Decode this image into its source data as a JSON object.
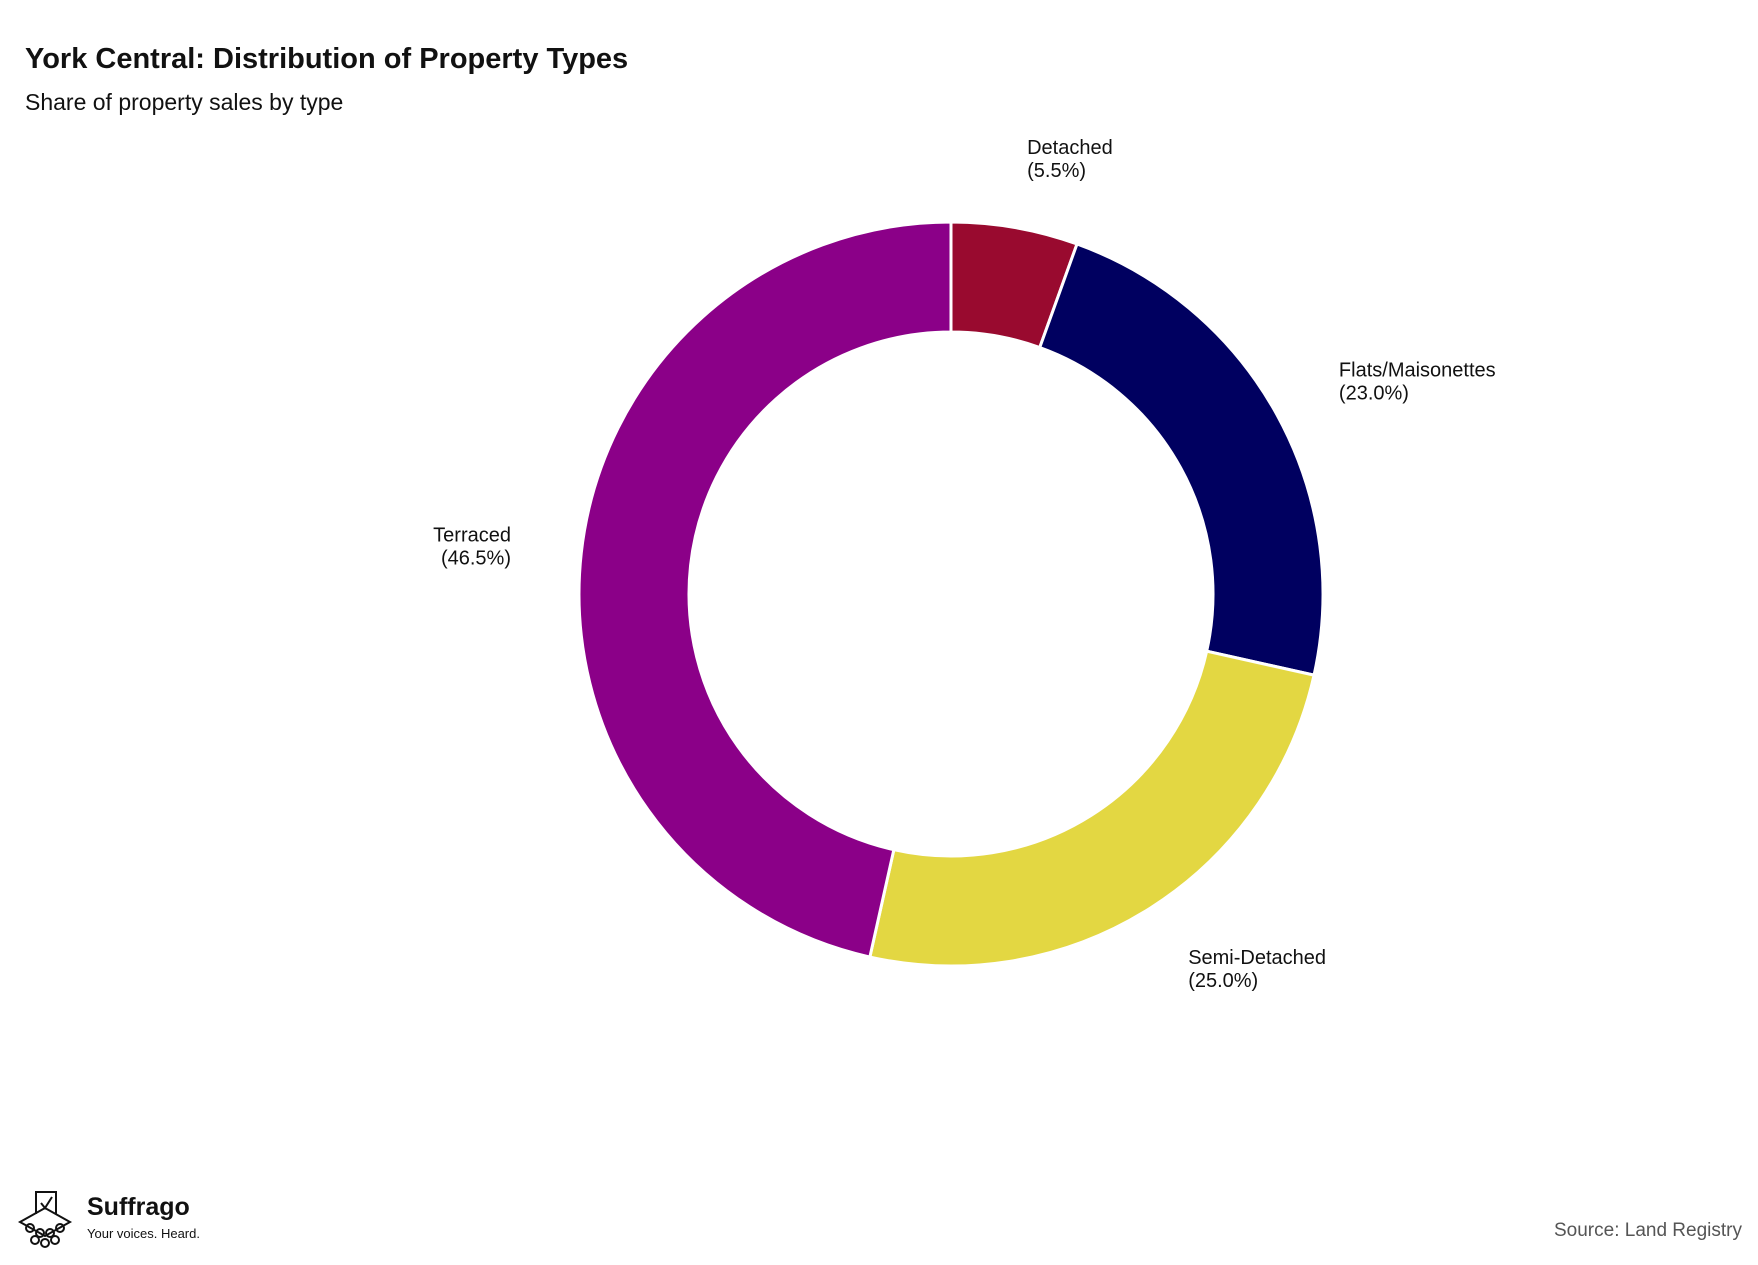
{
  "chart_data": {
    "type": "donut",
    "title": "York Central: Distribution of Property Types",
    "subtitle": "Share of property sales by type",
    "categories": [
      "Detached",
      "Flats/Maisonettes",
      "Semi-Detached",
      "Terraced"
    ],
    "values": [
      5.5,
      23.0,
      25.0,
      46.5
    ],
    "value_labels": [
      "(5.5%)",
      "(23.0%)",
      "(25.0%)",
      "(46.5%)"
    ],
    "colors": [
      "#990a2f",
      "#000060",
      "#e3d742",
      "#8b0088"
    ],
    "source": "Source: Land Registry"
  },
  "logo": {
    "name": "Suffrago",
    "tagline": "Your voices. Heard."
  }
}
